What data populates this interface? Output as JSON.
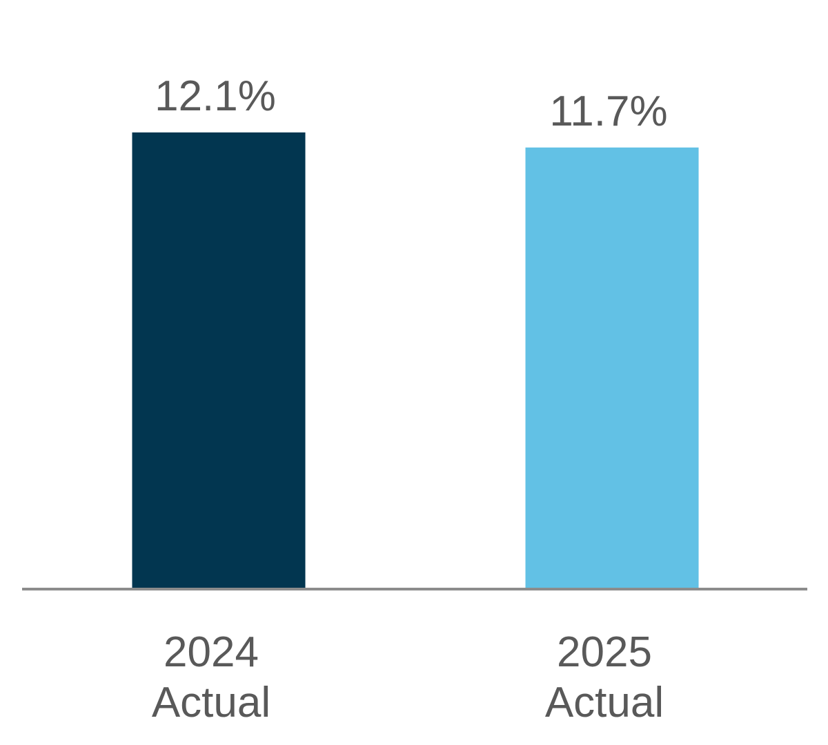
{
  "chart_data": {
    "type": "bar",
    "categories": [
      [
        "2024",
        "Actual"
      ],
      [
        "2025",
        "Actual"
      ]
    ],
    "values": [
      12.1,
      11.7
    ],
    "value_labels": [
      "12.1%",
      "11.7%"
    ],
    "colors": [
      "#023650",
      "#62C1E5"
    ],
    "axis_color": "#8c8c8c",
    "label_color": "#595959",
    "ylim": [
      0,
      12.1
    ],
    "grid": false,
    "legend": "none"
  }
}
